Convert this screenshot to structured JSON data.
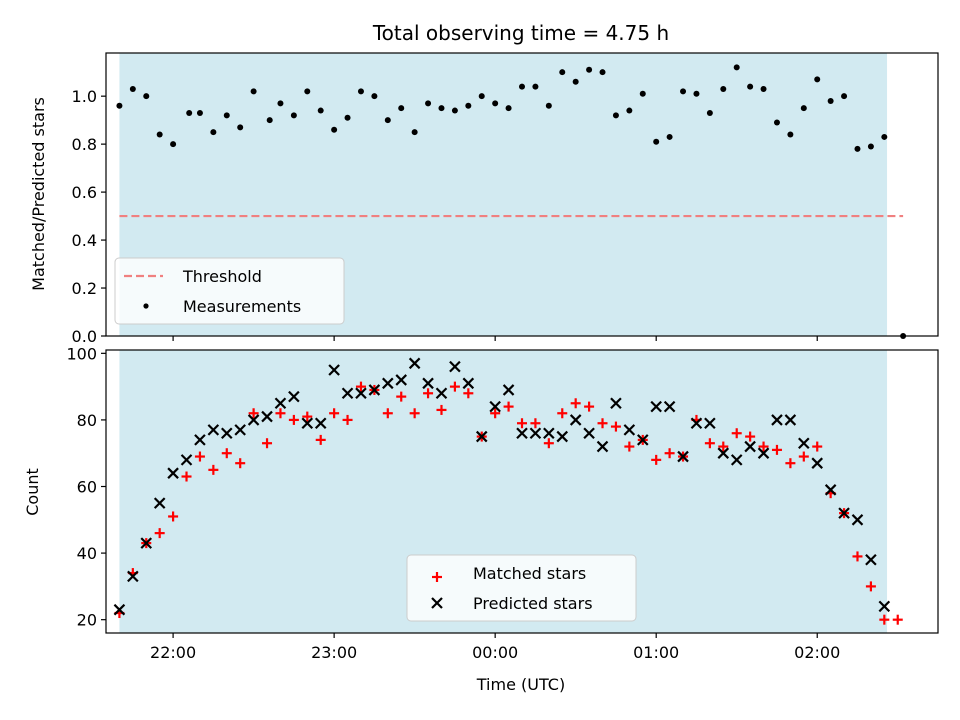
{
  "chart_data": [
    {
      "type": "scatter",
      "title": "Total observing time = 4.75 h",
      "ylabel": "Matched/Predicted stars",
      "xlabel": "",
      "xlim": [
        "21:35",
        "02:45"
      ],
      "ylim": [
        0,
        1.18
      ],
      "yticks": [
        "0.0",
        "0.2",
        "0.4",
        "0.6",
        "0.8",
        "1.0"
      ],
      "xticks": [
        "22:00",
        "23:00",
        "00:00",
        "01:00",
        "02:00"
      ],
      "shaded_span": [
        "21:40",
        "02:26"
      ],
      "colors": {
        "shade": "#add8e6",
        "threshold": "#f08080",
        "points": "#000000"
      },
      "grid": false,
      "legend": {
        "placement": "lower-left",
        "entries": [
          "Threshold",
          "Measurements"
        ]
      },
      "series": [
        {
          "name": "Threshold",
          "kind": "line",
          "style": "dashed",
          "x": [
            "21:40",
            "02:32"
          ],
          "values": [
            0.5,
            0.5
          ]
        },
        {
          "name": "Measurements",
          "kind": "scatter",
          "x": [
            "21:40",
            "21:45",
            "21:50",
            "21:55",
            "22:00",
            "22:06",
            "22:10",
            "22:15",
            "22:20",
            "22:25",
            "22:30",
            "22:36",
            "22:40",
            "22:45",
            "22:50",
            "22:55",
            "23:00",
            "23:05",
            "23:10",
            "23:15",
            "23:20",
            "23:25",
            "23:30",
            "23:35",
            "23:40",
            "23:45",
            "23:50",
            "23:55",
            "00:00",
            "00:05",
            "00:10",
            "00:15",
            "00:20",
            "00:25",
            "00:30",
            "00:35",
            "00:40",
            "00:45",
            "00:50",
            "00:55",
            "01:00",
            "01:05",
            "01:10",
            "01:15",
            "01:20",
            "01:25",
            "01:30",
            "01:35",
            "01:40",
            "01:45",
            "01:50",
            "01:55",
            "02:00",
            "02:05",
            "02:10",
            "02:15",
            "02:20",
            "02:25",
            "02:32"
          ],
          "values": [
            0.96,
            1.03,
            1.0,
            0.84,
            0.8,
            0.93,
            0.93,
            0.85,
            0.92,
            0.87,
            1.02,
            0.9,
            0.97,
            0.92,
            1.02,
            0.94,
            0.86,
            0.91,
            1.02,
            1.0,
            0.9,
            0.95,
            0.85,
            0.97,
            0.95,
            0.94,
            0.96,
            1.0,
            0.97,
            0.95,
            1.04,
            1.04,
            0.96,
            1.1,
            1.06,
            1.11,
            1.1,
            0.92,
            0.94,
            1.01,
            0.81,
            0.83,
            1.02,
            1.01,
            0.93,
            1.03,
            1.12,
            1.04,
            1.03,
            0.89,
            0.84,
            0.95,
            1.07,
            0.98,
            1.0,
            0.78,
            0.79,
            0.83,
            0.0
          ]
        }
      ]
    },
    {
      "type": "scatter",
      "title": "",
      "xlabel": "Time (UTC)",
      "ylabel": "Count",
      "xlim": [
        "21:35",
        "02:45"
      ],
      "ylim": [
        16,
        101
      ],
      "yticks": [
        "20",
        "40",
        "60",
        "80",
        "100"
      ],
      "xticks": [
        "22:00",
        "23:00",
        "00:00",
        "01:00",
        "02:00"
      ],
      "shaded_span": [
        "21:40",
        "02:26"
      ],
      "colors": {
        "shade": "#add8e6",
        "matched": "#ff0000",
        "predicted": "#000000"
      },
      "grid": false,
      "legend": {
        "placement": "lower-center",
        "entries": [
          "Matched stars",
          "Predicted stars"
        ]
      },
      "series": [
        {
          "name": "Matched stars",
          "marker": "+",
          "x": [
            "21:40",
            "21:45",
            "21:50",
            "21:55",
            "22:00",
            "22:05",
            "22:10",
            "22:15",
            "22:20",
            "22:25",
            "22:30",
            "22:35",
            "22:40",
            "22:45",
            "22:50",
            "22:55",
            "23:00",
            "23:05",
            "23:10",
            "23:15",
            "23:20",
            "23:25",
            "23:30",
            "23:35",
            "23:40",
            "23:45",
            "23:50",
            "23:55",
            "00:00",
            "00:05",
            "00:10",
            "00:15",
            "00:20",
            "00:25",
            "00:30",
            "00:35",
            "00:40",
            "00:45",
            "00:50",
            "00:55",
            "01:00",
            "01:05",
            "01:10",
            "01:15",
            "01:20",
            "01:25",
            "01:30",
            "01:35",
            "01:40",
            "01:45",
            "01:50",
            "01:55",
            "02:00",
            "02:05",
            "02:10",
            "02:15",
            "02:20",
            "02:25",
            "02:30"
          ],
          "values": [
            22,
            34,
            43,
            46,
            51,
            63,
            69,
            65,
            70,
            67,
            82,
            73,
            82,
            80,
            81,
            74,
            82,
            80,
            90,
            89,
            82,
            87,
            82,
            88,
            83,
            90,
            88,
            75,
            82,
            84,
            79,
            79,
            73,
            82,
            85,
            84,
            79,
            78,
            72,
            74,
            68,
            70,
            69,
            80,
            73,
            72,
            76,
            75,
            72,
            71,
            67,
            69,
            72,
            58,
            52,
            39,
            30,
            20,
            20
          ]
        },
        {
          "name": "Predicted stars",
          "marker": "x",
          "x": [
            "21:40",
            "21:45",
            "21:50",
            "21:55",
            "22:00",
            "22:05",
            "22:10",
            "22:15",
            "22:20",
            "22:25",
            "22:30",
            "22:35",
            "22:40",
            "22:45",
            "22:50",
            "22:55",
            "23:00",
            "23:05",
            "23:10",
            "23:15",
            "23:20",
            "23:25",
            "23:30",
            "23:35",
            "23:40",
            "23:45",
            "23:50",
            "23:55",
            "00:00",
            "00:05",
            "00:10",
            "00:15",
            "00:20",
            "00:25",
            "00:30",
            "00:35",
            "00:40",
            "00:45",
            "00:50",
            "00:55",
            "01:00",
            "01:05",
            "01:10",
            "01:15",
            "01:20",
            "01:25",
            "01:30",
            "01:35",
            "01:40",
            "01:45",
            "01:50",
            "01:55",
            "02:00",
            "02:05",
            "02:10",
            "02:15",
            "02:20",
            "02:25",
            "02:30"
          ],
          "values": [
            23,
            33,
            43,
            55,
            64,
            68,
            74,
            77,
            76,
            77,
            80,
            81,
            85,
            87,
            79,
            79,
            95,
            88,
            88,
            89,
            91,
            92,
            97,
            91,
            88,
            96,
            91,
            75,
            84,
            89,
            76,
            76,
            76,
            75,
            80,
            76,
            72,
            85,
            77,
            74,
            84,
            84,
            69,
            79,
            79,
            70,
            68,
            72,
            70,
            80,
            80,
            73,
            67,
            59,
            52,
            50,
            38,
            24,
            null
          ]
        }
      ]
    }
  ]
}
